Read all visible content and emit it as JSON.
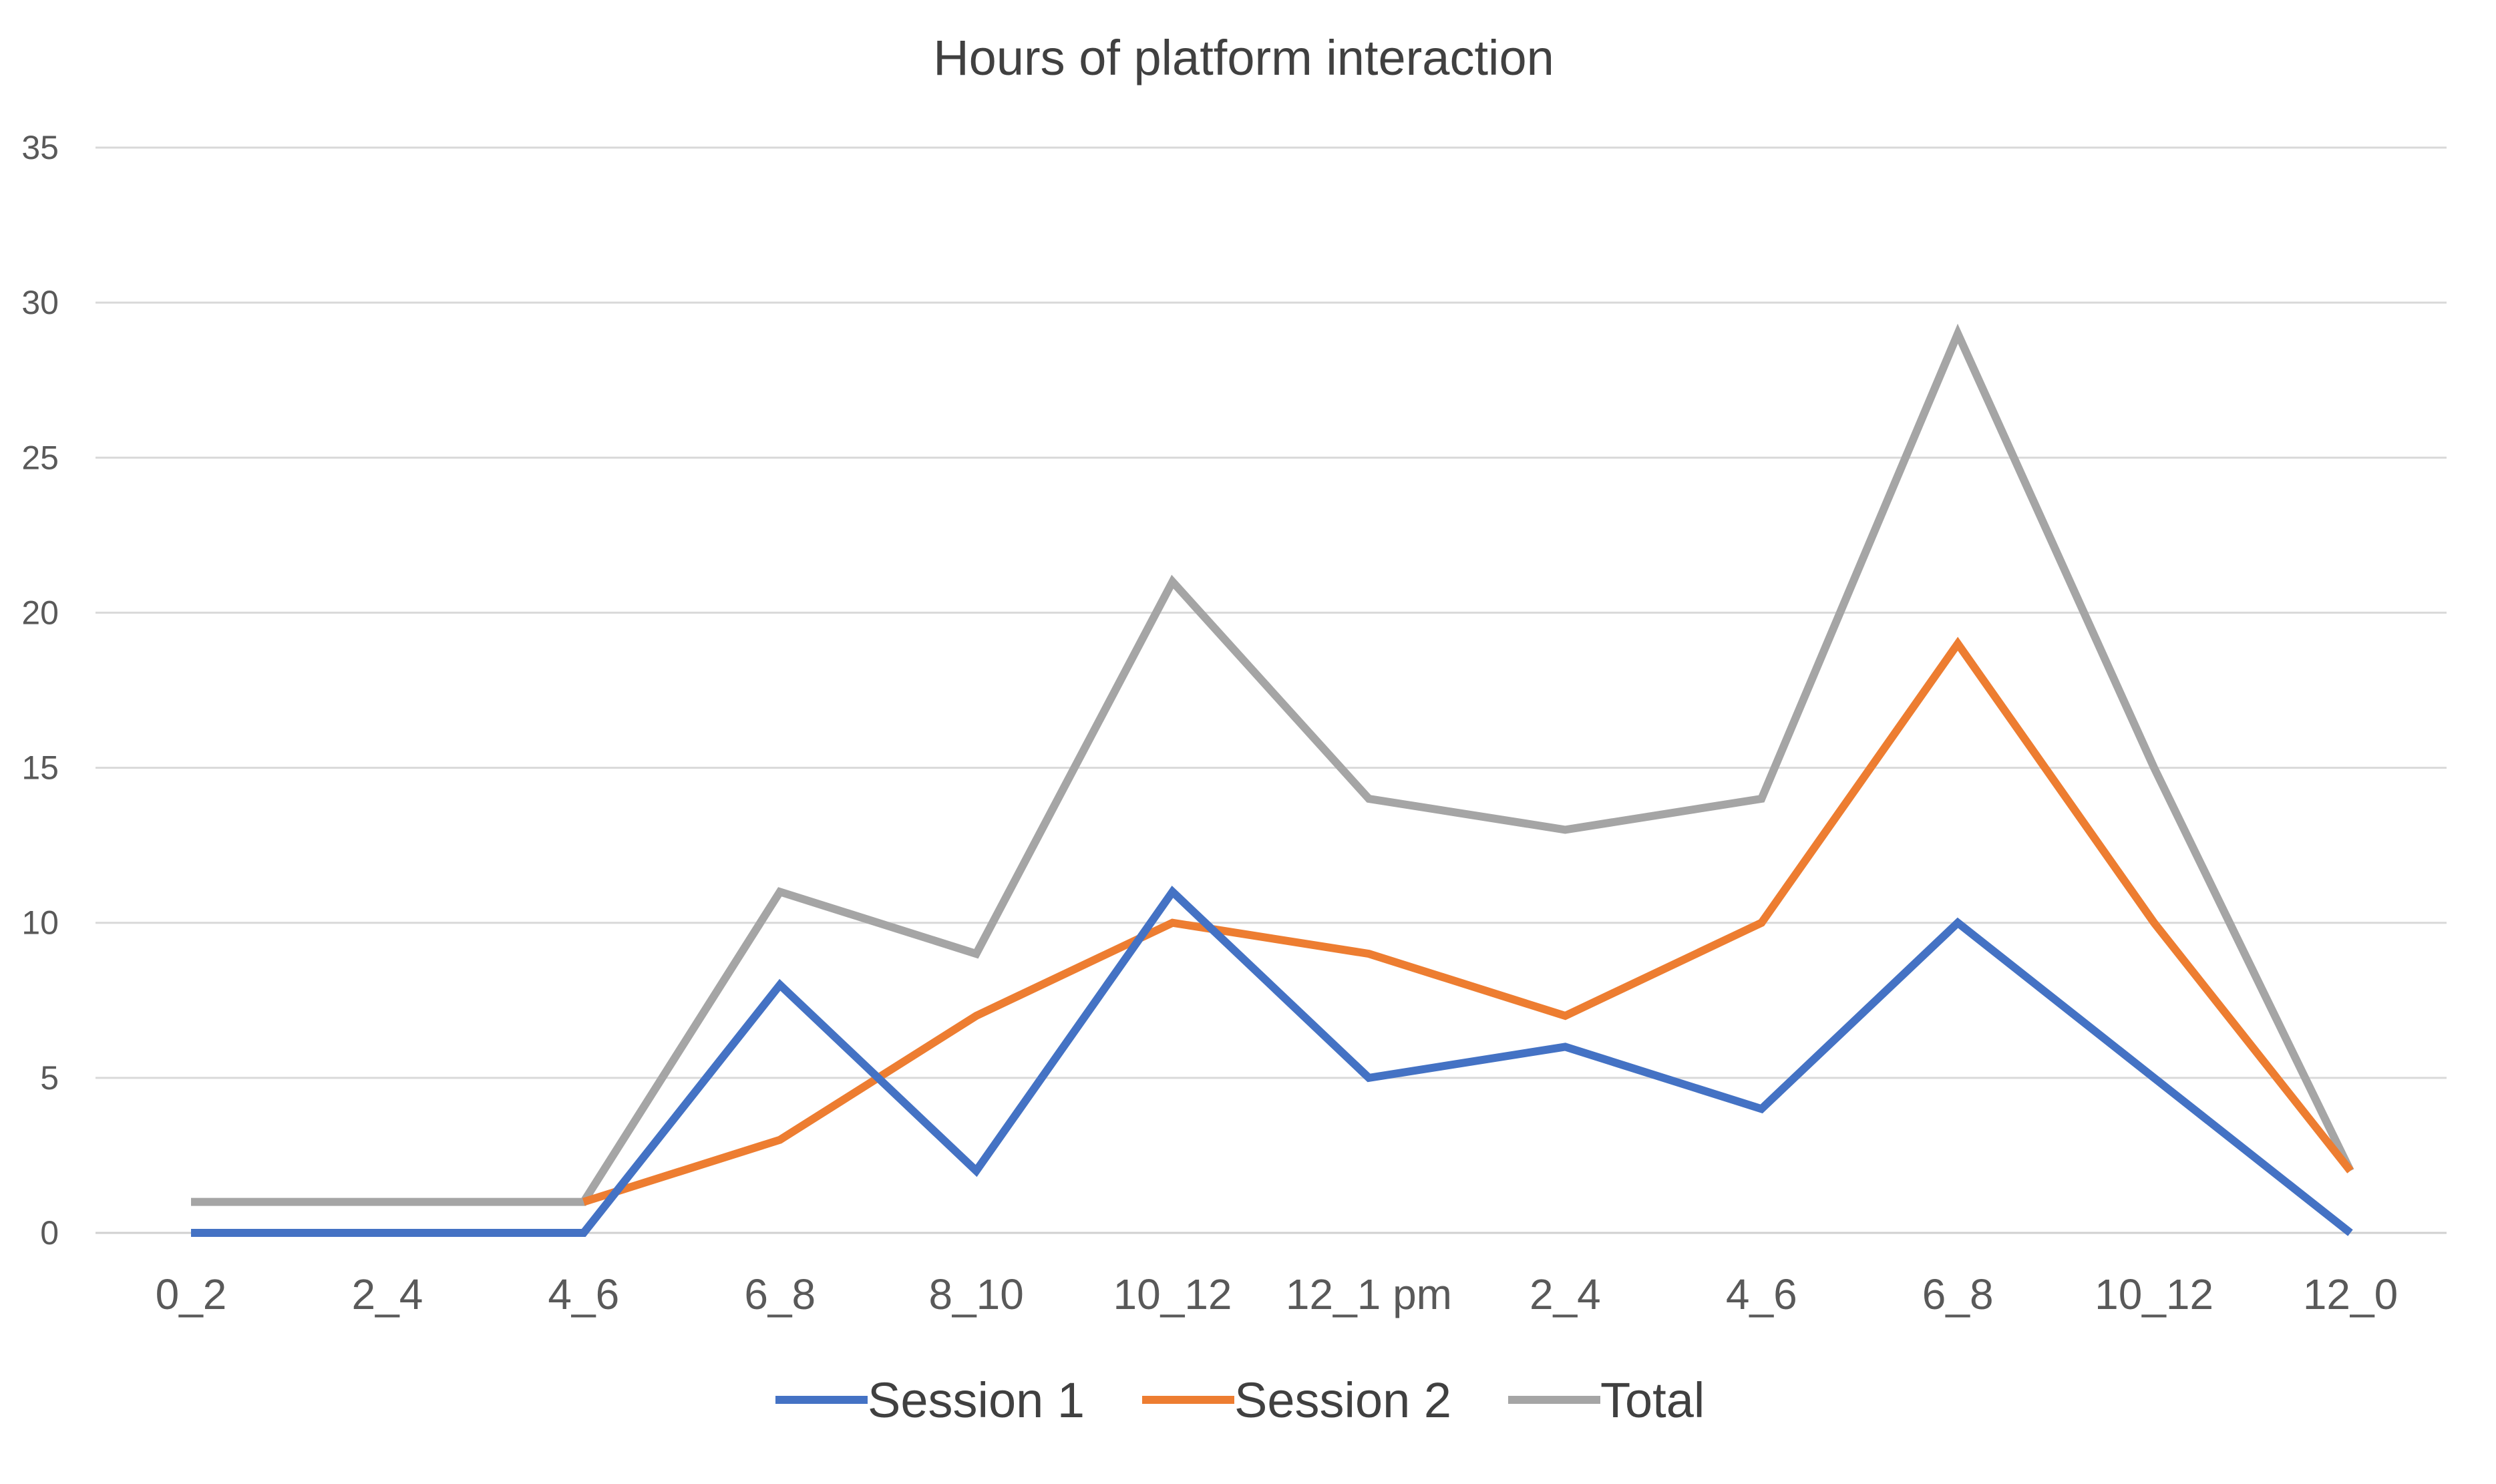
{
  "chart_data": {
    "type": "line",
    "title": "Hours of platform interaction",
    "xlabel": "",
    "ylabel": "",
    "categories": [
      "0_2",
      "2_4",
      "4_6",
      "6_8",
      "8_10",
      "10_12",
      "12_1 pm",
      "2_4",
      "4_6",
      "6_8",
      "10_12",
      "12_0"
    ],
    "ylim": [
      0,
      35
    ],
    "yticks": [
      "0",
      "5",
      "10",
      "15",
      "20",
      "25",
      "30",
      "35"
    ],
    "grid": true,
    "legend_position": "bottom",
    "series": [
      {
        "name": "Session 1",
        "color": "#4472c4",
        "values": [
          0,
          0,
          0,
          8,
          2,
          11,
          5,
          6,
          4,
          10,
          5,
          0
        ]
      },
      {
        "name": "Session 2",
        "color": "#ed7d31",
        "values": [
          null,
          null,
          1,
          3,
          7,
          10,
          9,
          7,
          10,
          19,
          10,
          2
        ]
      },
      {
        "name": "Total",
        "color": "#a5a5a5",
        "values": [
          1,
          1,
          1,
          11,
          9,
          21,
          14,
          13,
          14,
          29,
          15,
          2
        ]
      }
    ]
  }
}
